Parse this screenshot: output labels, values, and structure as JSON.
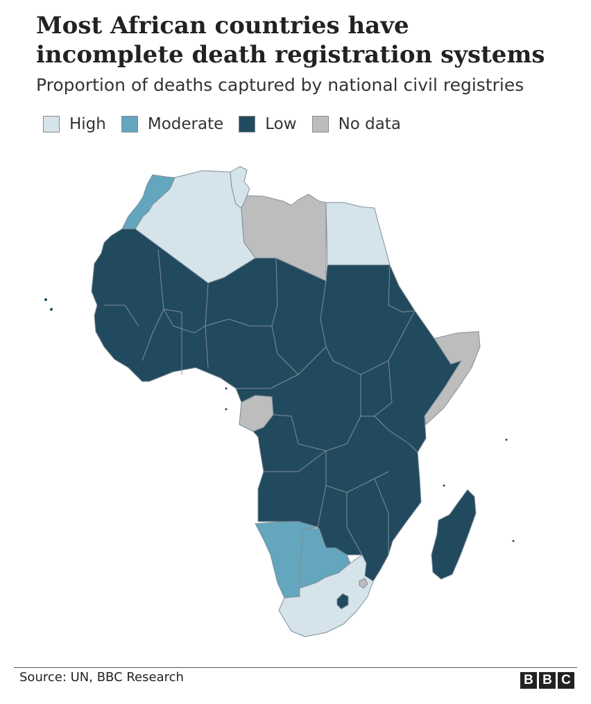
{
  "title": "Most African countries have incomplete death registration systems",
  "subtitle": "Proportion of deaths captured by national civil registries",
  "legend": [
    {
      "label": "High",
      "color": "#d5e3ea"
    },
    {
      "label": "Moderate",
      "color": "#64a6bd"
    },
    {
      "label": "Low",
      "color": "#224a5e"
    },
    {
      "label": "No data",
      "color": "#bdbdbd"
    }
  ],
  "regions": [
    {
      "name": "Algeria",
      "category": "High"
    },
    {
      "name": "Tunisia",
      "category": "High"
    },
    {
      "name": "Egypt",
      "category": "High"
    },
    {
      "name": "South Africa",
      "category": "High"
    },
    {
      "name": "Morocco",
      "category": "Moderate"
    },
    {
      "name": "Namibia",
      "category": "Moderate"
    },
    {
      "name": "Botswana",
      "category": "Moderate"
    },
    {
      "name": "Libya",
      "category": "No data"
    },
    {
      "name": "Somalia",
      "category": "No data"
    },
    {
      "name": "Gabon",
      "category": "No data"
    },
    {
      "name": "Eswatini",
      "category": "No data"
    },
    {
      "name": "Lesotho",
      "category": "Low"
    },
    {
      "name": "Madagascar",
      "category": "Low"
    },
    {
      "name": "Rest of Africa",
      "category": "Low"
    }
  ],
  "source": "Source: UN, BBC Research",
  "logo": [
    "B",
    "B",
    "C"
  ]
}
